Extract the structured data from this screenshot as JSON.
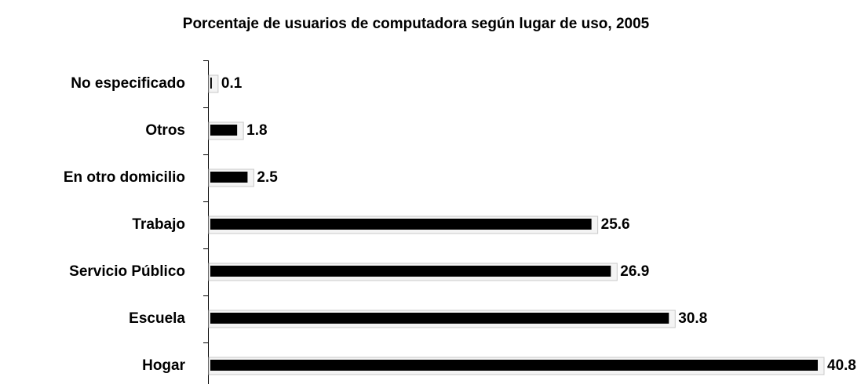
{
  "chart_data": {
    "type": "bar",
    "orientation": "horizontal",
    "title": "Porcentaje de usuarios de computadora según lugar de uso, 2005",
    "categories": [
      "No especificado",
      "Otros",
      "En otro domicilio",
      "Trabajo",
      "Servicio Público",
      "Escuela",
      "Hogar"
    ],
    "values": [
      0.1,
      1.8,
      2.5,
      25.6,
      26.9,
      30.8,
      40.8
    ],
    "color": "#000000"
  }
}
